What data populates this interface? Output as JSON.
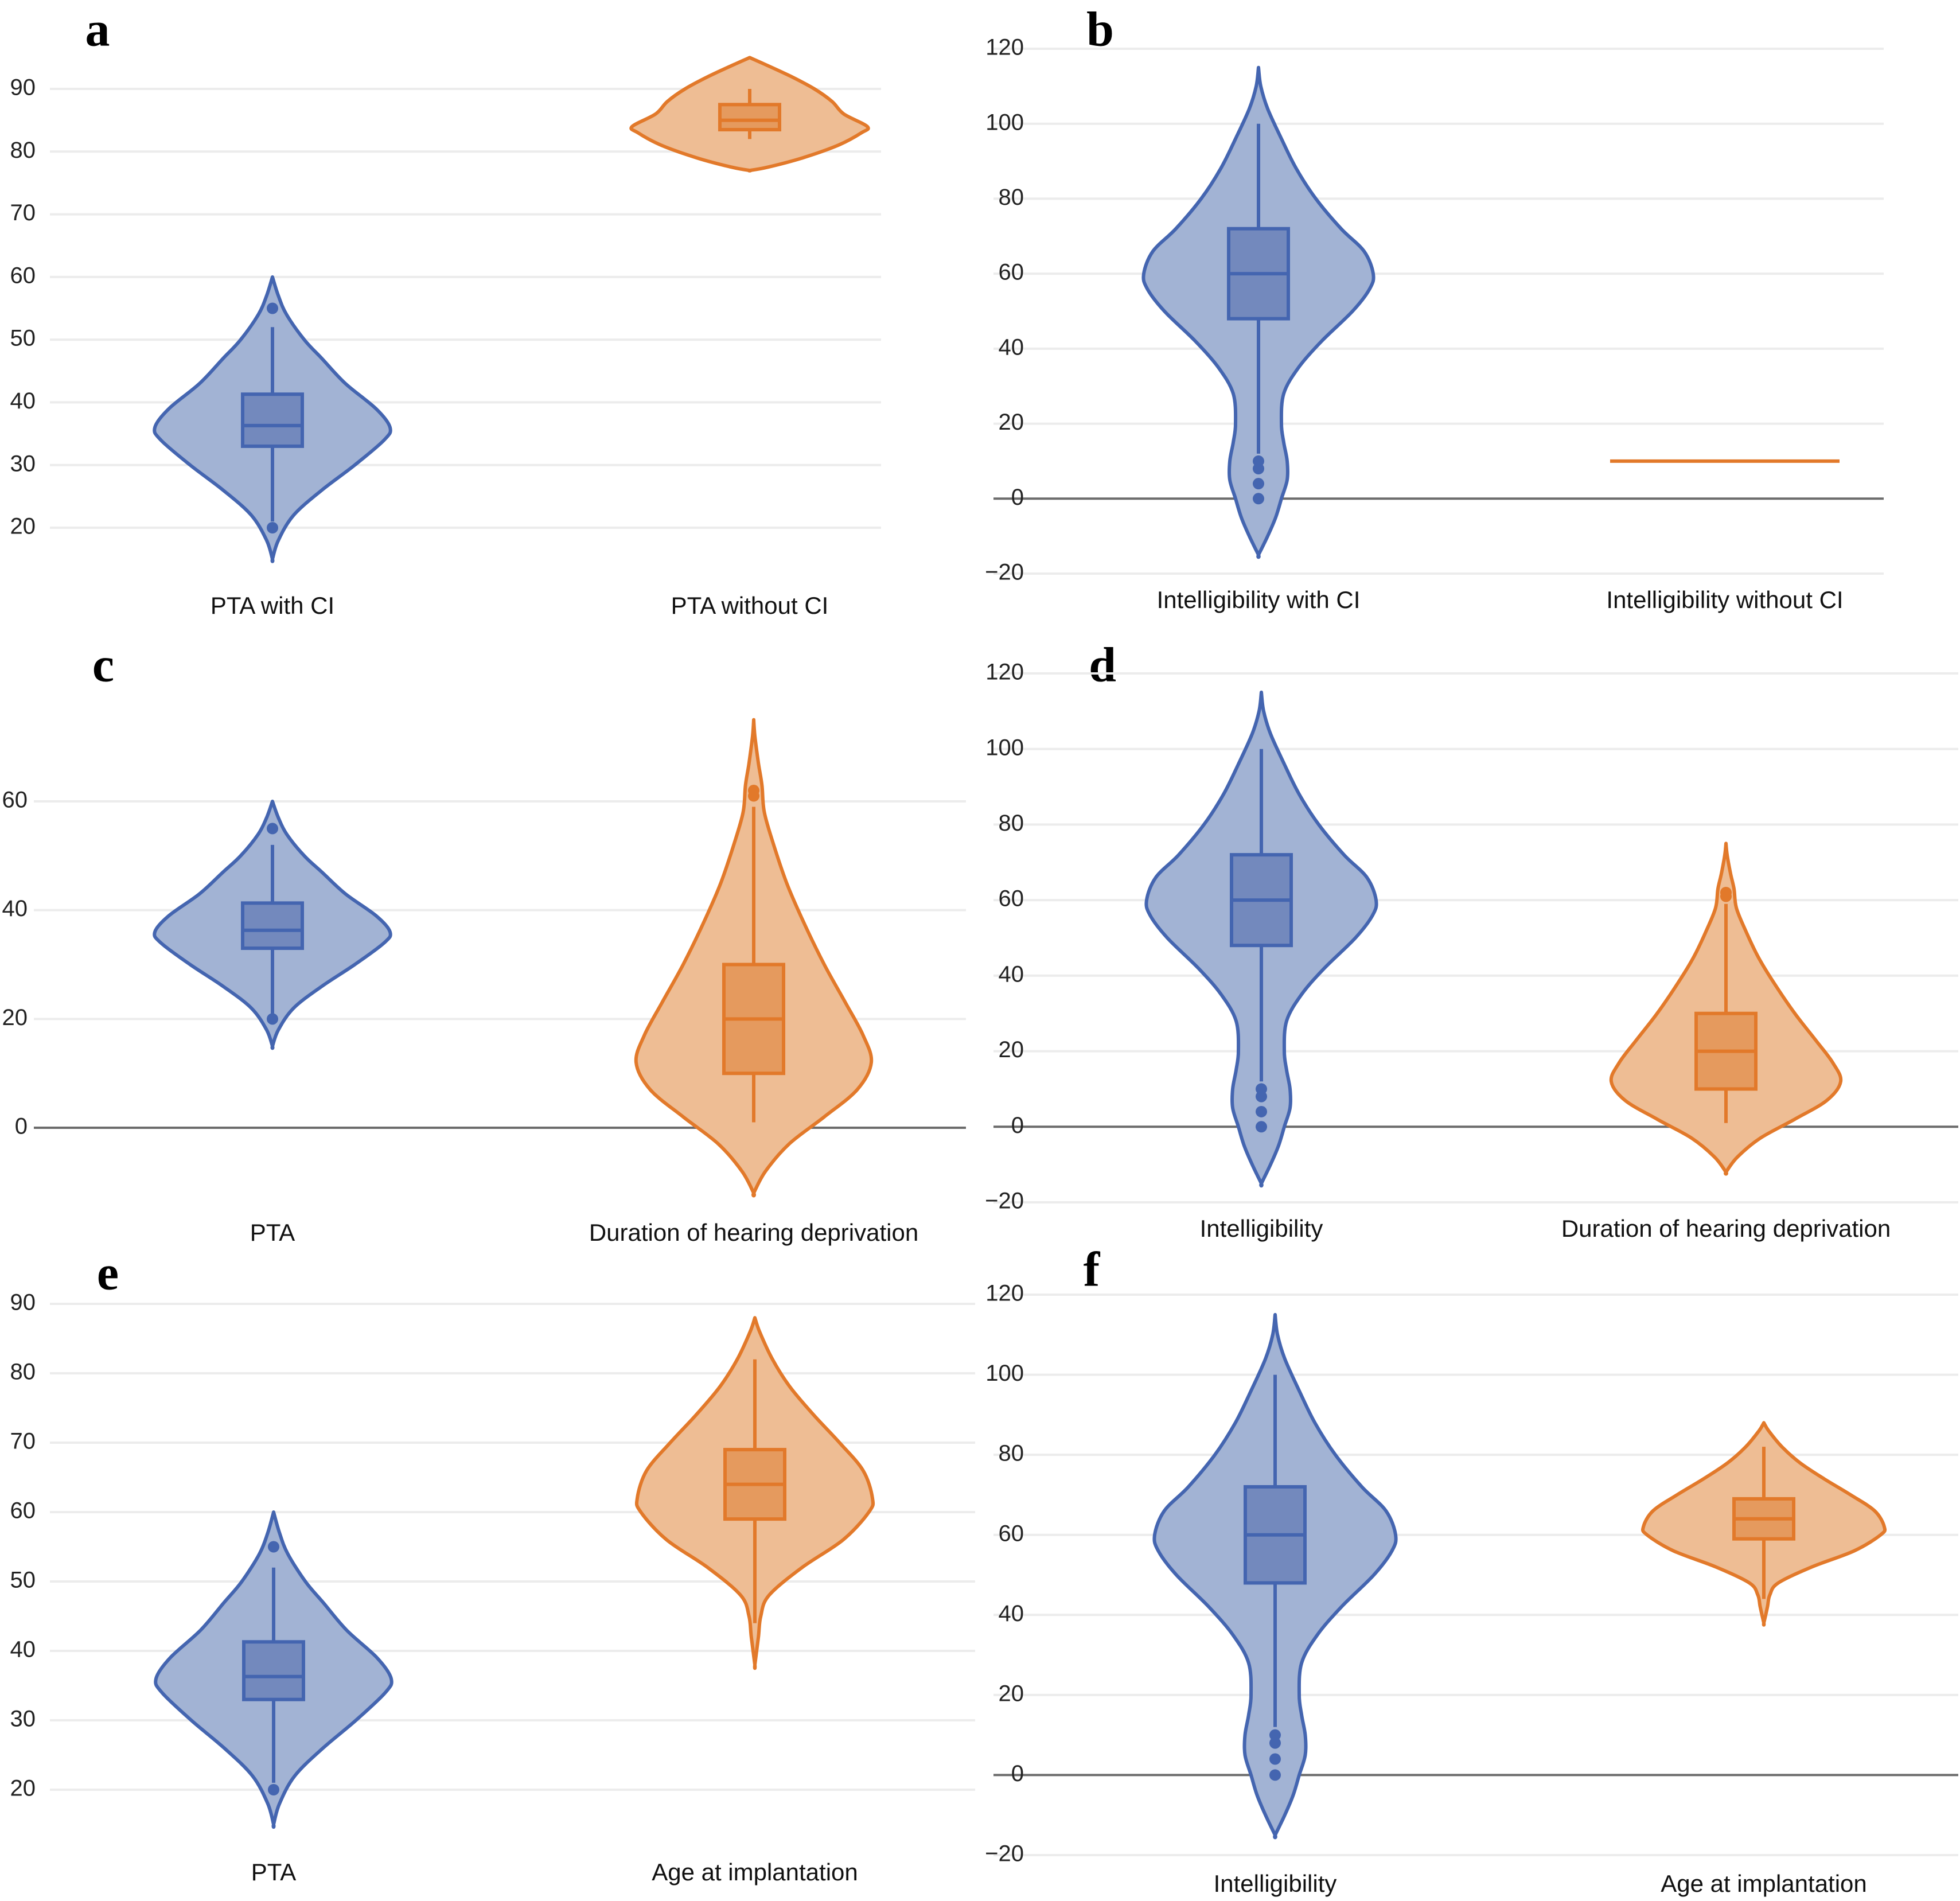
{
  "colors": {
    "blue_line": "#4465b0",
    "blue_fill": "#a2b3d4",
    "blue_box": "#7389bd",
    "orange_line": "#e2792a",
    "orange_fill": "#eebd94",
    "orange_box": "#e59a5e"
  },
  "chart_data": [
    {
      "panel": "a",
      "type": "violin",
      "categories": [
        "PTA with CI",
        "PTA without CI"
      ],
      "ylim": [
        15,
        96
      ],
      "yticks": [
        20,
        30,
        40,
        50,
        60,
        70,
        80,
        90
      ],
      "zero_line": false,
      "series": [
        {
          "name": "PTA with CI",
          "color": "blue",
          "kde_range": [
            15,
            60
          ],
          "whisker": [
            21,
            52
          ],
          "q1": 33,
          "median": 36.3,
          "q3": 41.3,
          "outliers": [
            55,
            20
          ],
          "profile": [
            [
              15,
              0
            ],
            [
              18,
              0.05
            ],
            [
              22,
              0.18
            ],
            [
              26,
              0.42
            ],
            [
              30,
              0.7
            ],
            [
              34,
              0.95
            ],
            [
              36,
              1.0
            ],
            [
              39,
              0.88
            ],
            [
              43,
              0.62
            ],
            [
              47,
              0.42
            ],
            [
              50,
              0.27
            ],
            [
              54,
              0.12
            ],
            [
              57,
              0.05
            ],
            [
              60,
              0
            ]
          ]
        },
        {
          "name": "PTA without CI",
          "color": "orange",
          "kde_range": [
            77,
            95
          ],
          "whisker": [
            82,
            90
          ],
          "q1": 83.5,
          "median": 85,
          "q3": 87.5,
          "outliers": [],
          "profile": [
            [
              77,
              0
            ],
            [
              77.5,
              0.15
            ],
            [
              79,
              0.45
            ],
            [
              81,
              0.75
            ],
            [
              83,
              0.95
            ],
            [
              84,
              1.0
            ],
            [
              86,
              0.8
            ],
            [
              88,
              0.7
            ],
            [
              90,
              0.55
            ],
            [
              92,
              0.35
            ],
            [
              94,
              0.12
            ],
            [
              95,
              0
            ]
          ]
        }
      ]
    },
    {
      "panel": "b",
      "type": "violin",
      "categories": [
        "Intelligibility with CI",
        "Intelligibility without CI"
      ],
      "ylim": [
        -20,
        120
      ],
      "yticks": [
        -20,
        0,
        20,
        40,
        60,
        80,
        100,
        120
      ],
      "zero_line": true,
      "series": [
        {
          "name": "Intelligibility with CI",
          "color": "blue",
          "kde_range": [
            -15,
            115
          ],
          "whisker": [
            12,
            100
          ],
          "q1": 48,
          "median": 60,
          "q3": 72,
          "outliers": [
            10,
            8,
            4,
            0
          ],
          "profile": [
            [
              -15,
              0
            ],
            [
              -10,
              0.08
            ],
            [
              -5,
              0.15
            ],
            [
              0,
              0.2
            ],
            [
              5,
              0.25
            ],
            [
              10,
              0.25
            ],
            [
              15,
              0.22
            ],
            [
              20,
              0.2
            ],
            [
              28,
              0.22
            ],
            [
              35,
              0.35
            ],
            [
              42,
              0.55
            ],
            [
              50,
              0.82
            ],
            [
              56,
              0.97
            ],
            [
              60,
              1.0
            ],
            [
              66,
              0.92
            ],
            [
              72,
              0.72
            ],
            [
              80,
              0.5
            ],
            [
              88,
              0.33
            ],
            [
              96,
              0.2
            ],
            [
              104,
              0.08
            ],
            [
              110,
              0.02
            ],
            [
              115,
              0
            ]
          ]
        },
        {
          "name": "Intelligibility without CI",
          "color": "orange",
          "constant_value": 10
        }
      ]
    },
    {
      "panel": "c",
      "type": "violin",
      "categories": [
        "PTA",
        "Duration of hearing deprivation"
      ],
      "ylim": [
        -12,
        78
      ],
      "yticks": [
        0,
        20,
        40,
        60
      ],
      "zero_line": true,
      "series": [
        {
          "name": "PTA",
          "color": "blue",
          "kde_range": [
            15,
            60
          ],
          "whisker": [
            21,
            52
          ],
          "q1": 33,
          "median": 36.3,
          "q3": 41.3,
          "outliers": [
            55,
            20
          ],
          "profile": [
            [
              15,
              0
            ],
            [
              18,
              0.05
            ],
            [
              22,
              0.18
            ],
            [
              26,
              0.42
            ],
            [
              30,
              0.7
            ],
            [
              34,
              0.95
            ],
            [
              36,
              1.0
            ],
            [
              39,
              0.88
            ],
            [
              43,
              0.62
            ],
            [
              47,
              0.42
            ],
            [
              50,
              0.27
            ],
            [
              54,
              0.12
            ],
            [
              57,
              0.05
            ],
            [
              60,
              0
            ]
          ]
        },
        {
          "name": "Duration of hearing deprivation",
          "color": "orange",
          "kde_range": [
            -12,
            75
          ],
          "whisker": [
            1,
            59
          ],
          "q1": 10,
          "median": 20,
          "q3": 30,
          "outliers": [
            62,
            61
          ],
          "profile": [
            [
              -12,
              0
            ],
            [
              -8,
              0.1
            ],
            [
              -3,
              0.3
            ],
            [
              2,
              0.6
            ],
            [
              7,
              0.88
            ],
            [
              12,
              1.0
            ],
            [
              17,
              0.93
            ],
            [
              23,
              0.78
            ],
            [
              30,
              0.6
            ],
            [
              38,
              0.42
            ],
            [
              45,
              0.28
            ],
            [
              52,
              0.17
            ],
            [
              58,
              0.09
            ],
            [
              63,
              0.07
            ],
            [
              67,
              0.04
            ],
            [
              72,
              0.01
            ],
            [
              75,
              0
            ]
          ]
        }
      ]
    },
    {
      "panel": "d",
      "type": "violin",
      "categories": [
        "Intelligibility",
        "Duration of hearing deprivation"
      ],
      "ylim": [
        -20,
        120
      ],
      "yticks": [
        -20,
        0,
        20,
        40,
        60,
        80,
        100,
        120
      ],
      "zero_line": true,
      "series": [
        {
          "name": "Intelligibility",
          "color": "blue",
          "kde_range": [
            -15,
            115
          ],
          "whisker": [
            12,
            100
          ],
          "q1": 48,
          "median": 60,
          "q3": 72,
          "outliers": [
            10,
            8,
            4,
            0
          ],
          "profile": [
            [
              -15,
              0
            ],
            [
              -10,
              0.08
            ],
            [
              -5,
              0.15
            ],
            [
              0,
              0.2
            ],
            [
              5,
              0.25
            ],
            [
              10,
              0.25
            ],
            [
              15,
              0.22
            ],
            [
              20,
              0.2
            ],
            [
              28,
              0.22
            ],
            [
              35,
              0.35
            ],
            [
              42,
              0.55
            ],
            [
              50,
              0.82
            ],
            [
              56,
              0.97
            ],
            [
              60,
              1.0
            ],
            [
              66,
              0.92
            ],
            [
              72,
              0.72
            ],
            [
              80,
              0.5
            ],
            [
              88,
              0.33
            ],
            [
              96,
              0.2
            ],
            [
              104,
              0.08
            ],
            [
              110,
              0.02
            ],
            [
              115,
              0
            ]
          ]
        },
        {
          "name": "Duration of hearing deprivation",
          "color": "orange",
          "kde_range": [
            -12,
            75
          ],
          "whisker": [
            1,
            59
          ],
          "q1": 10,
          "median": 20,
          "q3": 30,
          "outliers": [
            62,
            61
          ],
          "profile": [
            [
              -12,
              0
            ],
            [
              -8,
              0.1
            ],
            [
              -3,
              0.3
            ],
            [
              2,
              0.6
            ],
            [
              7,
              0.88
            ],
            [
              12,
              1.0
            ],
            [
              17,
              0.93
            ],
            [
              23,
              0.78
            ],
            [
              30,
              0.6
            ],
            [
              38,
              0.42
            ],
            [
              45,
              0.28
            ],
            [
              52,
              0.17
            ],
            [
              58,
              0.09
            ],
            [
              63,
              0.07
            ],
            [
              67,
              0.04
            ],
            [
              72,
              0.01
            ],
            [
              75,
              0
            ]
          ]
        }
      ]
    },
    {
      "panel": "e",
      "type": "violin",
      "categories": [
        "PTA",
        "Age at implantation"
      ],
      "ylim": [
        15,
        90
      ],
      "yticks": [
        20,
        30,
        40,
        50,
        60,
        70,
        80,
        90
      ],
      "zero_line": false,
      "series": [
        {
          "name": "PTA",
          "color": "blue",
          "kde_range": [
            15,
            60
          ],
          "whisker": [
            21,
            52
          ],
          "q1": 33,
          "median": 36.3,
          "q3": 41.3,
          "outliers": [
            55,
            20
          ],
          "profile": [
            [
              15,
              0
            ],
            [
              18,
              0.05
            ],
            [
              22,
              0.18
            ],
            [
              26,
              0.42
            ],
            [
              30,
              0.7
            ],
            [
              34,
              0.95
            ],
            [
              36,
              1.0
            ],
            [
              39,
              0.88
            ],
            [
              43,
              0.62
            ],
            [
              47,
              0.42
            ],
            [
              50,
              0.27
            ],
            [
              54,
              0.12
            ],
            [
              57,
              0.05
            ],
            [
              60,
              0
            ]
          ]
        },
        {
          "name": "Age at implantation",
          "color": "orange",
          "kde_range": [
            38,
            88
          ],
          "whisker": [
            44,
            82
          ],
          "q1": 59,
          "median": 64,
          "q3": 69,
          "outliers": [],
          "profile": [
            [
              38,
              0
            ],
            [
              42,
              0.03
            ],
            [
              45,
              0.05
            ],
            [
              48,
              0.12
            ],
            [
              52,
              0.4
            ],
            [
              56,
              0.75
            ],
            [
              60,
              0.97
            ],
            [
              62,
              1.0
            ],
            [
              66,
              0.92
            ],
            [
              70,
              0.72
            ],
            [
              74,
              0.5
            ],
            [
              78,
              0.3
            ],
            [
              82,
              0.15
            ],
            [
              86,
              0.04
            ],
            [
              88,
              0
            ]
          ]
        }
      ]
    },
    {
      "panel": "f",
      "type": "violin",
      "categories": [
        "Intelligibility",
        "Age at implantation"
      ],
      "ylim": [
        -20,
        120
      ],
      "yticks": [
        -20,
        0,
        20,
        40,
        60,
        80,
        100,
        120
      ],
      "zero_line": true,
      "series": [
        {
          "name": "Intelligibility",
          "color": "blue",
          "kde_range": [
            -15,
            115
          ],
          "whisker": [
            12,
            100
          ],
          "q1": 48,
          "median": 60,
          "q3": 72,
          "outliers": [
            10,
            8,
            4,
            0
          ],
          "profile": [
            [
              -15,
              0
            ],
            [
              -10,
              0.08
            ],
            [
              -5,
              0.15
            ],
            [
              0,
              0.2
            ],
            [
              5,
              0.25
            ],
            [
              10,
              0.25
            ],
            [
              15,
              0.22
            ],
            [
              20,
              0.2
            ],
            [
              28,
              0.22
            ],
            [
              35,
              0.35
            ],
            [
              42,
              0.55
            ],
            [
              50,
              0.82
            ],
            [
              56,
              0.97
            ],
            [
              60,
              1.0
            ],
            [
              66,
              0.92
            ],
            [
              72,
              0.72
            ],
            [
              80,
              0.5
            ],
            [
              88,
              0.33
            ],
            [
              96,
              0.2
            ],
            [
              104,
              0.08
            ],
            [
              110,
              0.02
            ],
            [
              115,
              0
            ]
          ]
        },
        {
          "name": "Age at implantation",
          "color": "orange",
          "kde_range": [
            38,
            88
          ],
          "whisker": [
            44,
            82
          ],
          "q1": 59,
          "median": 64,
          "q3": 69,
          "outliers": [],
          "profile": [
            [
              38,
              0
            ],
            [
              42,
              0.03
            ],
            [
              45,
              0.05
            ],
            [
              48,
              0.12
            ],
            [
              52,
              0.4
            ],
            [
              56,
              0.75
            ],
            [
              60,
              0.97
            ],
            [
              62,
              1.0
            ],
            [
              66,
              0.92
            ],
            [
              70,
              0.72
            ],
            [
              74,
              0.5
            ],
            [
              78,
              0.3
            ],
            [
              82,
              0.15
            ],
            [
              86,
              0.04
            ],
            [
              88,
              0
            ]
          ]
        }
      ]
    }
  ]
}
